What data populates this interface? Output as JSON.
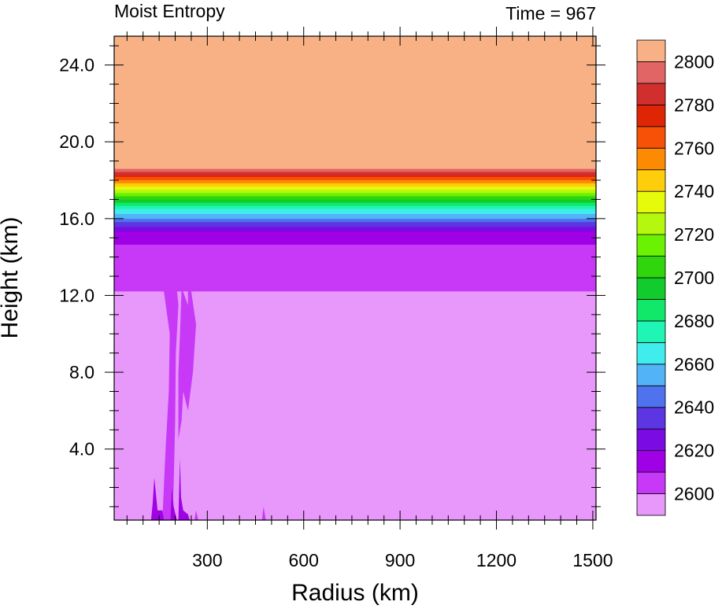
{
  "chart_data": {
    "type": "heatmap",
    "title": "Moist Entropy",
    "subtitle": "Time = 967",
    "xlabel": "Radius (km)",
    "ylabel": "Height (km)",
    "xlim": [
      10,
      1510
    ],
    "ylim": [
      0.3,
      25.5
    ],
    "x_ticks": [
      300,
      600,
      900,
      1200,
      1500
    ],
    "x_tick_labels": [
      "300",
      "600",
      "900",
      "1200",
      "1500"
    ],
    "y_ticks": [
      4,
      8,
      12,
      16,
      20,
      24
    ],
    "y_tick_labels": [
      "4.0",
      "8.0",
      "12.0",
      "16.0",
      "20.0",
      "24.0"
    ],
    "levels": [
      2600,
      2610,
      2620,
      2630,
      2640,
      2650,
      2660,
      2670,
      2680,
      2690,
      2700,
      2710,
      2720,
      2730,
      2740,
      2750,
      2760,
      2770,
      2780,
      2790,
      2800
    ],
    "colorbar_labels": [
      "2600",
      "2620",
      "2640",
      "2660",
      "2680",
      "2700",
      "2720",
      "2740",
      "2760",
      "2780",
      "2800"
    ],
    "colors": [
      "#e798fa",
      "#c739f6",
      "#9f00e6",
      "#7a0ce3",
      "#5b36e2",
      "#4f73ee",
      "#52b4f6",
      "#41ecec",
      "#1ff5b4",
      "#11e869",
      "#12cc2d",
      "#2fd60b",
      "#6bf102",
      "#b5f70f",
      "#e6fb0b",
      "#fecd0b",
      "#fd8a03",
      "#f75007",
      "#de2607",
      "#d12e2e",
      "#e26565",
      "#f8b185"
    ],
    "vertical_profile": [
      {
        "z": 0.3,
        "value": 2598
      },
      {
        "z": 12.2,
        "value": 2598
      },
      {
        "z": 12.4,
        "value": 2604
      },
      {
        "z": 15.0,
        "value": 2611
      },
      {
        "z": 15.5,
        "value": 2626
      },
      {
        "z": 16.0,
        "value": 2648
      },
      {
        "z": 16.5,
        "value": 2668
      },
      {
        "z": 17.0,
        "value": 2698
      },
      {
        "z": 17.5,
        "value": 2728
      },
      {
        "z": 18.0,
        "value": 2758
      },
      {
        "z": 18.4,
        "value": 2788
      },
      {
        "z": 18.7,
        "value": 2805
      },
      {
        "z": 25.5,
        "value": 2805
      }
    ],
    "anomalies": [
      {
        "value": 2605,
        "points": [
          [
            160,
            0.3
          ],
          [
            170,
            4
          ],
          [
            180,
            7
          ],
          [
            183,
            10
          ],
          [
            165,
            12.2
          ],
          [
            150,
            12.3
          ],
          [
            185,
            12.35
          ],
          [
            200,
            12.35
          ],
          [
            205,
            12.3
          ],
          [
            210,
            11.5
          ],
          [
            202,
            9
          ],
          [
            200,
            5.5
          ],
          [
            195,
            2
          ],
          [
            190,
            0.3
          ]
        ]
      },
      {
        "value": 2605,
        "points": [
          [
            210,
            4.5
          ],
          [
            220,
            5.5
          ],
          [
            225,
            7
          ],
          [
            240,
            6
          ],
          [
            255,
            8
          ],
          [
            265,
            10.5
          ],
          [
            250,
            12.2
          ],
          [
            258,
            12.3
          ],
          [
            245,
            12.3
          ],
          [
            240,
            12.2
          ],
          [
            240,
            11.5
          ],
          [
            220,
            12.4
          ],
          [
            215,
            10
          ],
          [
            210,
            8
          ]
        ]
      },
      {
        "value": 2612,
        "points": [
          [
            125,
            0.3
          ],
          [
            130,
            1.2
          ],
          [
            135,
            2.5
          ],
          [
            145,
            0.8
          ],
          [
            160,
            0.8
          ],
          [
            165,
            0.3
          ]
        ]
      },
      {
        "value": 2612,
        "points": [
          [
            185,
            0.3
          ],
          [
            190,
            2
          ],
          [
            195,
            1
          ],
          [
            205,
            0.3
          ]
        ]
      },
      {
        "value": 2612,
        "points": [
          [
            210,
            0.3
          ],
          [
            215,
            3.5
          ],
          [
            218,
            1.5
          ],
          [
            225,
            0.8
          ],
          [
            240,
            0.6
          ],
          [
            245,
            0.3
          ]
        ]
      },
      {
        "value": 2605,
        "points": [
          [
            260,
            0.3
          ],
          [
            265,
            0.8
          ],
          [
            272,
            0.3
          ]
        ]
      },
      {
        "value": 2605,
        "points": [
          [
            470,
            0.3
          ],
          [
            475,
            1.0
          ],
          [
            482,
            0.3
          ]
        ]
      }
    ]
  }
}
